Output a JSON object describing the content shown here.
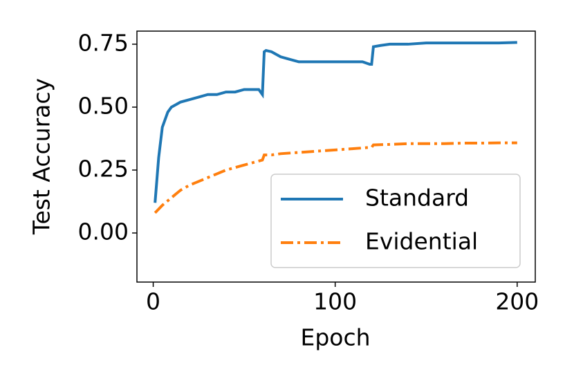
{
  "chart_data": {
    "type": "line",
    "x_label": "Epoch",
    "y_label": "Test Accuracy",
    "xlim": [
      -8.95,
      209.95
    ],
    "xticks": [
      0,
      100,
      200
    ],
    "ylim": [
      -0.195,
      0.802
    ],
    "yticks": [
      {
        "value": 0,
        "label": "0.00"
      },
      {
        "value": 0.25,
        "label": "0.25"
      },
      {
        "value": 0.5,
        "label": "0.50"
      },
      {
        "value": 0.75,
        "label": "0.75"
      }
    ],
    "legend": "lower right",
    "series": [
      {
        "name": "Standard",
        "color": "#1f77b4",
        "dash": "solid",
        "x": [
          1,
          3,
          5,
          8,
          10,
          15,
          20,
          25,
          30,
          35,
          40,
          45,
          50,
          55,
          58,
          60,
          61,
          62,
          65,
          70,
          75,
          80,
          90,
          100,
          110,
          115,
          119,
          120,
          121,
          125,
          130,
          140,
          150,
          160,
          170,
          180,
          190,
          200
        ],
        "values": [
          0.12,
          0.3,
          0.42,
          0.48,
          0.5,
          0.52,
          0.53,
          0.54,
          0.55,
          0.55,
          0.56,
          0.56,
          0.57,
          0.57,
          0.57,
          0.55,
          0.72,
          0.725,
          0.72,
          0.7,
          0.69,
          0.68,
          0.68,
          0.68,
          0.68,
          0.68,
          0.67,
          0.67,
          0.74,
          0.745,
          0.75,
          0.75,
          0.755,
          0.755,
          0.755,
          0.755,
          0.755,
          0.757
        ]
      },
      {
        "name": "Evidential",
        "color": "#ff7f0e",
        "dash": "dashdot",
        "x": [
          1,
          5,
          10,
          15,
          20,
          30,
          40,
          50,
          55,
          60,
          61,
          65,
          70,
          80,
          90,
          100,
          110,
          119,
          120,
          121,
          130,
          140,
          150,
          160,
          170,
          180,
          190,
          200
        ],
        "values": [
          0.08,
          0.11,
          0.14,
          0.17,
          0.19,
          0.22,
          0.25,
          0.27,
          0.28,
          0.29,
          0.31,
          0.31,
          0.315,
          0.32,
          0.325,
          0.33,
          0.335,
          0.34,
          0.34,
          0.35,
          0.352,
          0.355,
          0.355,
          0.355,
          0.357,
          0.357,
          0.358,
          0.358
        ]
      }
    ]
  }
}
